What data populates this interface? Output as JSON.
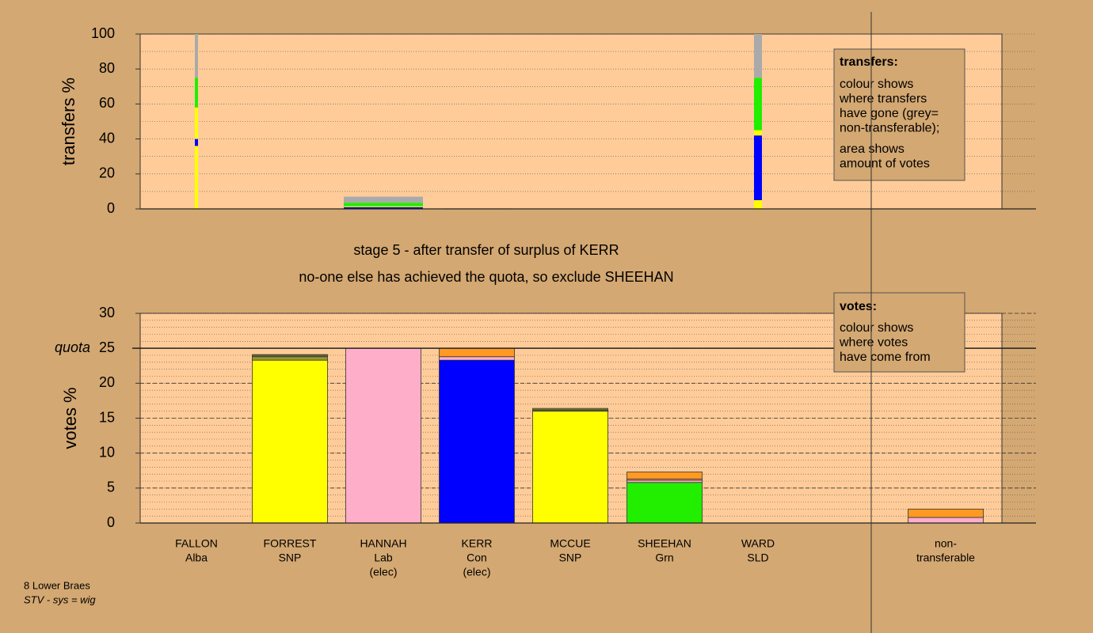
{
  "chart_data": [
    {
      "type": "stacked_bar",
      "ylabel": "transfers %",
      "ylim": [
        0,
        100
      ],
      "yticks": [
        0,
        20,
        40,
        60,
        80,
        100
      ],
      "minor_grid_step": 10,
      "bars": [
        {
          "amount": 0.4,
          "segments": [
            {
              "color": "#ffff00",
              "value": 36
            },
            {
              "color": "#0000ff",
              "value": 4
            },
            {
              "color": "#ffff00",
              "value": 18
            },
            {
              "color": "#22ee00",
              "value": 17
            },
            {
              "color": "#aaaaaa",
              "value": 25
            }
          ]
        },
        null,
        {
          "amount": 10,
          "segments": [
            {
              "color": "#0000ff",
              "value": 1
            },
            {
              "color": "#ffff00",
              "value": 0.5
            },
            {
              "color": "#22ee00",
              "value": 2
            },
            {
              "color": "#aaaaaa",
              "value": 3.5
            }
          ]
        },
        {
          "amount": 8.5,
          "segments": [
            {
              "color": "#aaaaaa",
              "value": 0.3
            }
          ]
        },
        null,
        null,
        {
          "amount": 1,
          "segments": [
            {
              "color": "#ffff00",
              "value": 5
            },
            {
              "color": "#0000ff",
              "value": 37
            },
            {
              "color": "#ffff00",
              "value": 3
            },
            {
              "color": "#22ee00",
              "value": 30
            },
            {
              "color": "#aaaaaa",
              "value": 25
            }
          ]
        },
        null
      ],
      "legend": {
        "title": "transfers:",
        "paragraphs": [
          [
            "colour shows",
            "where transfers",
            "have gone (grey=",
            "non-transferable);"
          ],
          [
            "area shows",
            "amount of votes"
          ]
        ]
      }
    },
    {
      "type": "stacked_bar",
      "title": "stage 5 - after transfer of surplus of KERR",
      "subtitle": "no-one else has achieved the quota, so exclude SHEEHAN",
      "ylabel": "votes %",
      "ylim": [
        0,
        30
      ],
      "yticks": [
        0,
        5,
        10,
        15,
        20,
        25,
        30
      ],
      "minor_grid_step": 1,
      "quota": {
        "label": "quota",
        "value": 25
      },
      "categories": [
        [
          "FALLON",
          "Alba"
        ],
        [
          "FORREST",
          "SNP"
        ],
        [
          "HANNAH",
          "Lab",
          "(elec)"
        ],
        [
          "KERR",
          "Con",
          "(elec)"
        ],
        [
          "MCCUE",
          "SNP"
        ],
        [
          "SHEEHAN",
          "Grn"
        ],
        [
          "WARD",
          "SLD"
        ],
        [
          "non-",
          "transferable"
        ]
      ],
      "bars": [
        {
          "segments": [
            {
              "color": "#333333",
              "value": 0
            }
          ]
        },
        {
          "segments": [
            {
              "color": "#ffff00",
              "value": 23.3
            },
            {
              "color": "#999933",
              "value": 0.5
            },
            {
              "color": "#666633",
              "value": 0.3
            }
          ]
        },
        {
          "segments": [
            {
              "color": "#ffaec9",
              "value": 25
            }
          ]
        },
        {
          "segments": [
            {
              "color": "#0000ff",
              "value": 23.3
            },
            {
              "color": "#ffaec9",
              "value": 0.5
            },
            {
              "color": "#ff9922",
              "value": 1.2
            }
          ]
        },
        {
          "segments": [
            {
              "color": "#ffff00",
              "value": 16
            },
            {
              "color": "#666633",
              "value": 0.2
            },
            {
              "color": "#999933",
              "value": 0.2
            }
          ]
        },
        {
          "segments": [
            {
              "color": "#22ee00",
              "value": 5.8
            },
            {
              "color": "#ffaec9",
              "value": 0.3
            },
            {
              "color": "#ff9966",
              "value": 0.2
            },
            {
              "color": "#ff9922",
              "value": 1
            }
          ]
        },
        {
          "segments": [
            {
              "color": "#333333",
              "value": 0
            }
          ]
        },
        {
          "segments": [
            {
              "color": "#ffaec9",
              "value": 0.8
            },
            {
              "color": "#ff9922",
              "value": 1.2
            }
          ]
        }
      ],
      "legend": {
        "title": "votes:",
        "paragraphs": [
          [
            "colour shows",
            "where votes",
            "have come from"
          ]
        ]
      }
    }
  ],
  "footer": {
    "ward": "8 Lower Braes",
    "system": "STV - sys = wig"
  }
}
